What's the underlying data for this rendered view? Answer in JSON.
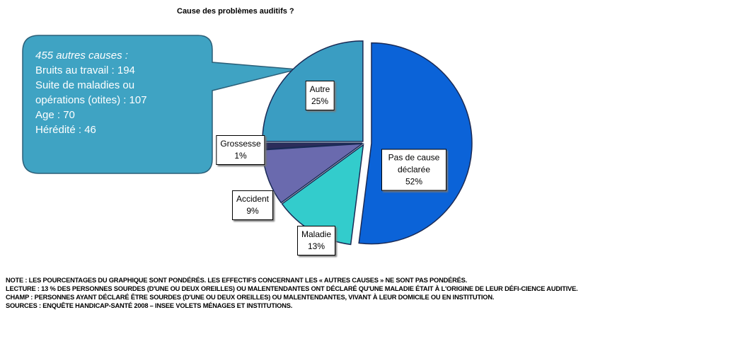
{
  "chart_data": {
    "type": "pie",
    "title": "Cause des problèmes auditifs ?",
    "categories": [
      "Pas de cause déclarée",
      "Maladie",
      "Accident",
      "Grossesse",
      "Autre"
    ],
    "values": [
      52,
      13,
      9,
      1,
      25
    ],
    "value_labels": [
      "52%",
      "13%",
      "9%",
      "1%",
      "25%"
    ],
    "colors": [
      "#0b63d8",
      "#33cccc",
      "#6a6aae",
      "#2c2c5a",
      "#3a9dc2"
    ],
    "callout": [
      "455 autres causes :",
      "Bruits au travail : 194",
      "Suite de maladies  ou",
      "opérations (otites) : 107",
      "Age : 70",
      "Hérédité : 46"
    ],
    "notes": [
      "NOTE : LES POURCENTAGES DU GRAPHIQUE SONT PONDÉRÉS. LES EFFECTIFS CONCERNANT LES « AUTRES CAUSES » NE SONT PAS PONDÉRÉS.",
      "LECTURE : 13 % DES PERSONNES SOURDES (D'UNE OU DEUX OREILLES) OU MALENTENDANTES ONT DÉCLARÉ QU'UNE MALADIE ÉTAIT À L'ORIGINE DE LEUR DÉFI-CIENCE AUDITIVE.",
      "CHAMP : PERSONNES AYANT DÉCLARÉ ÊTRE SOURDES (D'UNE OU DEUX OREILLES) OU MALENTENDANTES, VIVANT À LEUR DOMICILE OU EN INSTITUTION.",
      "SOURCES : ENQUÊTE HANDICAP-SANTÉ 2008 – INSEE VOLETS MÉNAGES ET INSTITUTIONS."
    ]
  }
}
